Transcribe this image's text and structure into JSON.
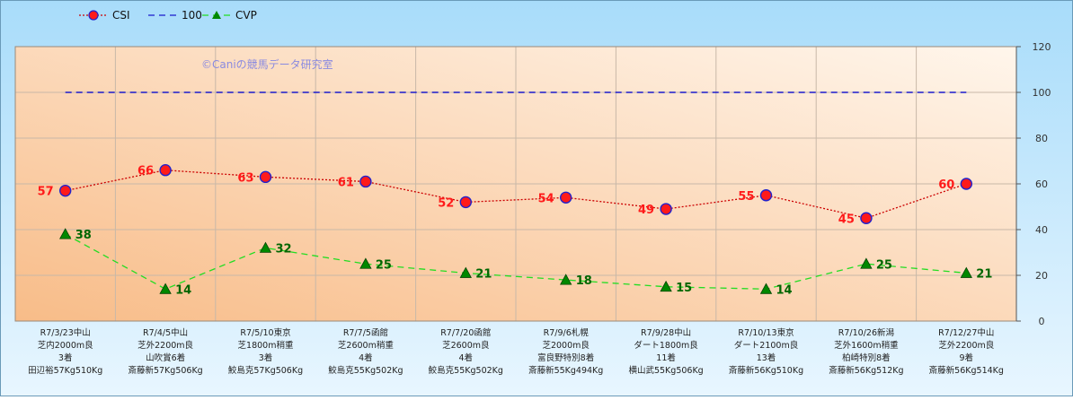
{
  "chart_data": {
    "type": "line",
    "watermark": "©Caniの競馬データ研究室",
    "categories": [
      [
        "R7/3/23中山",
        "芝内2000m良",
        "3着",
        "田辺裕57Kg510Kg"
      ],
      [
        "R7/4/5中山",
        "芝外2200m良",
        "山吹賞6着",
        "斎藤新57Kg506Kg"
      ],
      [
        "R7/5/10東京",
        "芝1800m稍重",
        "3着",
        "鮫島克57Kg506Kg"
      ],
      [
        "R7/7/5函館",
        "芝2600m稍重",
        "4着",
        "鮫島克55Kg502Kg"
      ],
      [
        "R7/7/20函館",
        "芝2600m良",
        "4着",
        "鮫島克55Kg502Kg"
      ],
      [
        "R7/9/6札幌",
        "芝2000m良",
        "富良野特別8着",
        "斎藤新55Kg494Kg"
      ],
      [
        "R7/9/28中山",
        "ダート1800m良",
        "11着",
        "横山武55Kg506Kg"
      ],
      [
        "R7/10/13東京",
        "ダート2100m良",
        "13着",
        "斎藤新56Kg510Kg"
      ],
      [
        "R7/10/26新潟",
        "芝外1600m稍重",
        "柏崎特別8着",
        "斎藤新56Kg512Kg"
      ],
      [
        "R7/12/27中山",
        "芝外2200m良",
        "9着",
        "斎藤新56Kg514Kg"
      ]
    ],
    "series": [
      {
        "name": "CSI",
        "values": [
          57,
          66,
          63,
          61,
          52,
          54,
          49,
          55,
          45,
          60
        ],
        "color": "#cc0000",
        "marker_fill": "#ff1a1a",
        "marker_stroke": "#2222cc",
        "line_style": "dotted",
        "marker": "circle",
        "label_color": "#ff1a1a"
      },
      {
        "name": "100",
        "values": [
          100,
          100,
          100,
          100,
          100,
          100,
          100,
          100,
          100,
          100
        ],
        "color": "#1a1acc",
        "line_style": "dashed",
        "marker": "none"
      },
      {
        "name": "CVP",
        "values": [
          38,
          14,
          32,
          25,
          21,
          18,
          15,
          14,
          25,
          21
        ],
        "color": "#22dd22",
        "marker_fill": "#008800",
        "line_style": "dashed",
        "marker": "triangle",
        "label_color": "#006600"
      }
    ],
    "y_axis": {
      "position": "right",
      "ylim": [
        0,
        120
      ],
      "ticks": [
        "0",
        "20",
        "40",
        "60",
        "80",
        "100",
        "120"
      ]
    },
    "grid": true,
    "legend": "top-left",
    "colors": {
      "page_top": "#a8dcfa",
      "page_bottom": "#e8f6ff",
      "plot_top": "#fff6ec",
      "plot_bottom": "#f8bc88",
      "grid": "#c8b8a8",
      "axis_text": "#333333",
      "category_text": "#222222"
    }
  }
}
